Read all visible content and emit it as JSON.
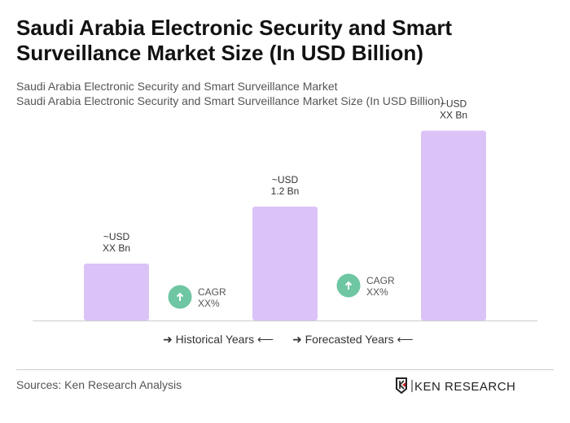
{
  "title": "Saudi Arabia Electronic Security and Smart Surveillance Market Size (In USD Billion)",
  "subtitle1": "Saudi Arabia Electronic Security and Smart Surveillance Market",
  "subtitle2": "Saudi Arabia Electronic Security and Smart Surveillance Market Size (In USD Billion)",
  "chart_data": {
    "type": "bar",
    "values": [
      0.6,
      1.2,
      2.0
    ],
    "data_labels": [
      [
        "~USD",
        "XX Bn"
      ],
      [
        "~USD",
        "1.2 Bn"
      ],
      [
        "~USD",
        "XX Bn"
      ]
    ],
    "cagr_labels": [
      [
        "CAGR",
        "XX%"
      ],
      [
        "CAGR",
        "XX%"
      ]
    ],
    "bar_color": "#dcc3f7",
    "cagr_color": "#6ec6a3",
    "grid": false
  },
  "legend": {
    "historical": "Historical Years",
    "forecasted": "Forecasted Years"
  },
  "footer": {
    "sources": "Sources: Ken Research Analysis",
    "logo_text": "KEN RESEARCH"
  }
}
